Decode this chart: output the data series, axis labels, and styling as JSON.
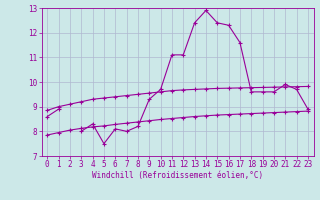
{
  "x": [
    0,
    1,
    2,
    3,
    4,
    5,
    6,
    7,
    8,
    9,
    10,
    11,
    12,
    13,
    14,
    15,
    16,
    17,
    18,
    19,
    20,
    21,
    22,
    23
  ],
  "main_line": [
    8.6,
    8.9,
    null,
    8.0,
    8.3,
    7.5,
    8.1,
    8.0,
    8.2,
    9.3,
    9.7,
    11.1,
    11.1,
    12.4,
    12.9,
    12.4,
    12.3,
    11.6,
    9.6,
    9.6,
    9.6,
    9.9,
    9.7,
    8.9
  ],
  "upper_line": [
    8.85,
    9.0,
    9.1,
    9.2,
    9.3,
    9.35,
    9.4,
    9.45,
    9.5,
    9.55,
    9.6,
    9.65,
    9.68,
    9.7,
    9.72,
    9.74,
    9.75,
    9.76,
    9.77,
    9.78,
    9.79,
    9.8,
    9.81,
    9.82
  ],
  "lower_line": [
    7.85,
    7.95,
    8.05,
    8.12,
    8.18,
    8.22,
    8.28,
    8.33,
    8.38,
    8.43,
    8.48,
    8.52,
    8.56,
    8.6,
    8.63,
    8.66,
    8.68,
    8.7,
    8.72,
    8.74,
    8.76,
    8.78,
    8.8,
    8.82
  ],
  "ylim": [
    7,
    13
  ],
  "xlim": [
    -0.5,
    23.5
  ],
  "yticks": [
    7,
    8,
    9,
    10,
    11,
    12,
    13
  ],
  "xticks": [
    0,
    1,
    2,
    3,
    4,
    5,
    6,
    7,
    8,
    9,
    10,
    11,
    12,
    13,
    14,
    15,
    16,
    17,
    18,
    19,
    20,
    21,
    22,
    23
  ],
  "xlabel": "Windchill (Refroidissement éolien,°C)",
  "line_color": "#990099",
  "bg_color": "#cce8e8",
  "grid_color": "#b0b8d0",
  "marker": "+",
  "linewidth": 0.8,
  "markersize": 3,
  "tick_fontsize": 5.5,
  "xlabel_fontsize": 5.5
}
